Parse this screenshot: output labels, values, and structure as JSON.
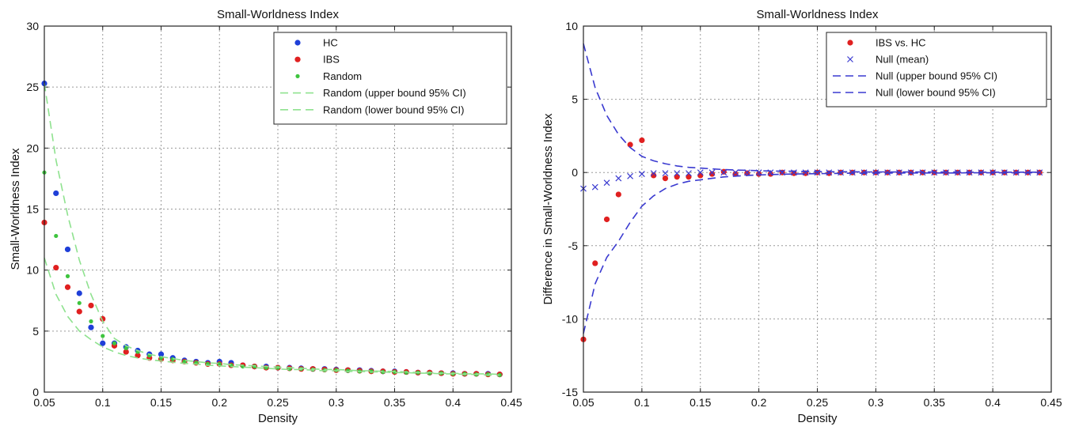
{
  "chart_data": [
    {
      "type": "scatter",
      "title": "Small-Worldness Index",
      "xlabel": "Density",
      "ylabel": "Small-Worldness Index",
      "xlim": [
        0.05,
        0.45
      ],
      "ylim": [
        0,
        30
      ],
      "xticks": [
        "0.05",
        "0.1",
        "0.15",
        "0.2",
        "0.25",
        "0.3",
        "0.35",
        "0.4",
        "0.45"
      ],
      "yticks": [
        "0",
        "5",
        "10",
        "15",
        "20",
        "25",
        "30"
      ],
      "grid": true,
      "legend_position": "top-right",
      "x": [
        0.05,
        0.06,
        0.07,
        0.08,
        0.09,
        0.1,
        0.11,
        0.12,
        0.13,
        0.14,
        0.15,
        0.16,
        0.17,
        0.18,
        0.19,
        0.2,
        0.21,
        0.22,
        0.23,
        0.24,
        0.25,
        0.26,
        0.27,
        0.28,
        0.29,
        0.3,
        0.31,
        0.32,
        0.33,
        0.34,
        0.35,
        0.36,
        0.37,
        0.38,
        0.39,
        0.4,
        0.41,
        0.42,
        0.43,
        0.44
      ],
      "series": [
        {
          "name": "HC",
          "kind": "points",
          "color": "#1f3fd8",
          "values": [
            25.3,
            16.3,
            11.7,
            8.1,
            5.3,
            4.0,
            4.0,
            3.7,
            3.4,
            3.1,
            3.1,
            2.8,
            2.6,
            2.5,
            2.4,
            2.5,
            2.4,
            2.2,
            2.1,
            2.1,
            2.0,
            2.0,
            1.95,
            1.9,
            1.9,
            1.85,
            1.8,
            1.8,
            1.75,
            1.7,
            1.7,
            1.65,
            1.6,
            1.6,
            1.55,
            1.55,
            1.5,
            1.5,
            1.5,
            1.45
          ]
        },
        {
          "name": "IBS",
          "kind": "points",
          "color": "#e02020",
          "values": [
            13.9,
            10.2,
            8.6,
            6.6,
            7.1,
            6.0,
            3.8,
            3.3,
            3.0,
            2.8,
            2.7,
            2.6,
            2.5,
            2.4,
            2.3,
            2.3,
            2.2,
            2.2,
            2.1,
            2.0,
            2.0,
            1.95,
            1.9,
            1.9,
            1.85,
            1.8,
            1.8,
            1.75,
            1.7,
            1.7,
            1.65,
            1.65,
            1.6,
            1.6,
            1.55,
            1.5,
            1.5,
            1.5,
            1.45,
            1.45
          ]
        },
        {
          "name": "Random",
          "kind": "points",
          "color": "#3ec43e",
          "values": [
            18.0,
            12.8,
            9.5,
            7.3,
            5.8,
            4.6,
            4.0,
            3.6,
            3.3,
            3.0,
            2.8,
            2.7,
            2.5,
            2.4,
            2.3,
            2.3,
            2.2,
            2.1,
            2.1,
            2.0,
            2.0,
            1.9,
            1.9,
            1.85,
            1.8,
            1.8,
            1.75,
            1.7,
            1.7,
            1.65,
            1.65,
            1.6,
            1.6,
            1.55,
            1.55,
            1.5,
            1.5,
            1.45,
            1.45,
            1.4
          ]
        },
        {
          "name": "Random (upper bound 95% CI)",
          "kind": "dashed-line",
          "color": "#8fe28f",
          "values": [
            25.3,
            19.0,
            14.5,
            10.8,
            8.0,
            5.8,
            4.4,
            3.8,
            3.4,
            3.1,
            2.9,
            2.75,
            2.6,
            2.5,
            2.4,
            2.35,
            2.25,
            2.2,
            2.15,
            2.1,
            2.05,
            2.0,
            1.95,
            1.9,
            1.85,
            1.85,
            1.8,
            1.75,
            1.75,
            1.7,
            1.7,
            1.65,
            1.6,
            1.6,
            1.55,
            1.55,
            1.5,
            1.5,
            1.5,
            1.45
          ]
        },
        {
          "name": "Random (lower bound 95% CI)",
          "kind": "dashed-line",
          "color": "#8fe28f",
          "values": [
            11.0,
            8.0,
            6.2,
            5.0,
            4.3,
            3.7,
            3.3,
            3.0,
            2.8,
            2.65,
            2.55,
            2.45,
            2.35,
            2.3,
            2.2,
            2.15,
            2.1,
            2.05,
            2.0,
            1.95,
            1.9,
            1.85,
            1.85,
            1.8,
            1.75,
            1.75,
            1.7,
            1.7,
            1.65,
            1.65,
            1.6,
            1.6,
            1.55,
            1.55,
            1.5,
            1.5,
            1.45,
            1.45,
            1.4,
            1.4
          ]
        }
      ]
    },
    {
      "type": "scatter",
      "title": "Small-Worldness Index",
      "xlabel": "Density",
      "ylabel": "Difference in Small-Worldness Index",
      "xlim": [
        0.05,
        0.45
      ],
      "ylim": [
        -15,
        10
      ],
      "xticks": [
        "0.05",
        "0.1",
        "0.15",
        "0.2",
        "0.25",
        "0.3",
        "0.35",
        "0.4",
        "0.45"
      ],
      "yticks": [
        "-15",
        "-10",
        "-5",
        "0",
        "5",
        "10"
      ],
      "grid": true,
      "legend_position": "top-right",
      "x": [
        0.05,
        0.06,
        0.07,
        0.08,
        0.09,
        0.1,
        0.11,
        0.12,
        0.13,
        0.14,
        0.15,
        0.16,
        0.17,
        0.18,
        0.19,
        0.2,
        0.21,
        0.22,
        0.23,
        0.24,
        0.25,
        0.26,
        0.27,
        0.28,
        0.29,
        0.3,
        0.31,
        0.32,
        0.33,
        0.34,
        0.35,
        0.36,
        0.37,
        0.38,
        0.39,
        0.4,
        0.41,
        0.42,
        0.43,
        0.44
      ],
      "series": [
        {
          "name": "IBS vs. HC",
          "kind": "points",
          "color": "#e02020",
          "values": [
            -11.4,
            -6.2,
            -3.2,
            -1.5,
            1.9,
            2.2,
            -0.2,
            -0.4,
            -0.3,
            -0.3,
            -0.2,
            -0.1,
            0.05,
            -0.1,
            -0.05,
            -0.1,
            -0.1,
            0.0,
            -0.05,
            -0.05,
            0.0,
            -0.05,
            0.0,
            0.0,
            0.0,
            0.0,
            0.0,
            0.0,
            0.0,
            0.0,
            0.0,
            0.0,
            0.0,
            0.0,
            0.0,
            0.0,
            0.0,
            0.0,
            0.0,
            0.0
          ]
        },
        {
          "name": "Null (mean)",
          "kind": "x-marks",
          "color": "#3a3ad0",
          "values": [
            -1.1,
            -1.0,
            -0.7,
            -0.4,
            -0.25,
            -0.1,
            -0.05,
            -0.05,
            -0.05,
            -0.05,
            0.0,
            0.0,
            0.0,
            0.0,
            0.0,
            0.0,
            0.0,
            0.0,
            0.0,
            0.0,
            0.0,
            0.0,
            0.0,
            0.0,
            0.0,
            0.0,
            0.0,
            0.0,
            0.0,
            0.0,
            0.0,
            0.0,
            0.0,
            0.0,
            0.0,
            0.0,
            0.0,
            0.0,
            0.0,
            0.0
          ]
        },
        {
          "name": "Null (upper bound 95% CI)",
          "kind": "dashed-line",
          "color": "#3a3ad0",
          "values": [
            8.8,
            5.8,
            3.9,
            2.6,
            1.7,
            1.1,
            0.8,
            0.6,
            0.45,
            0.35,
            0.3,
            0.25,
            0.2,
            0.17,
            0.15,
            0.12,
            0.1,
            0.09,
            0.08,
            0.07,
            0.06,
            0.05,
            0.05,
            0.05,
            0.04,
            0.04,
            0.04,
            0.03,
            0.03,
            0.03,
            0.03,
            0.03,
            0.03,
            0.02,
            0.02,
            0.02,
            0.02,
            0.02,
            0.02,
            0.02
          ]
        },
        {
          "name": "Null (lower bound 95% CI)",
          "kind": "dashed-line",
          "color": "#3a3ad0",
          "values": [
            -11.0,
            -7.6,
            -5.8,
            -4.7,
            -3.4,
            -2.3,
            -1.6,
            -1.1,
            -0.8,
            -0.6,
            -0.5,
            -0.4,
            -0.3,
            -0.25,
            -0.2,
            -0.17,
            -0.14,
            -0.12,
            -0.1,
            -0.09,
            -0.08,
            -0.07,
            -0.06,
            -0.05,
            -0.05,
            -0.04,
            -0.04,
            -0.04,
            -0.03,
            -0.03,
            -0.03,
            -0.03,
            -0.03,
            -0.02,
            -0.02,
            -0.02,
            -0.02,
            -0.02,
            -0.02,
            -0.02
          ]
        }
      ]
    }
  ]
}
